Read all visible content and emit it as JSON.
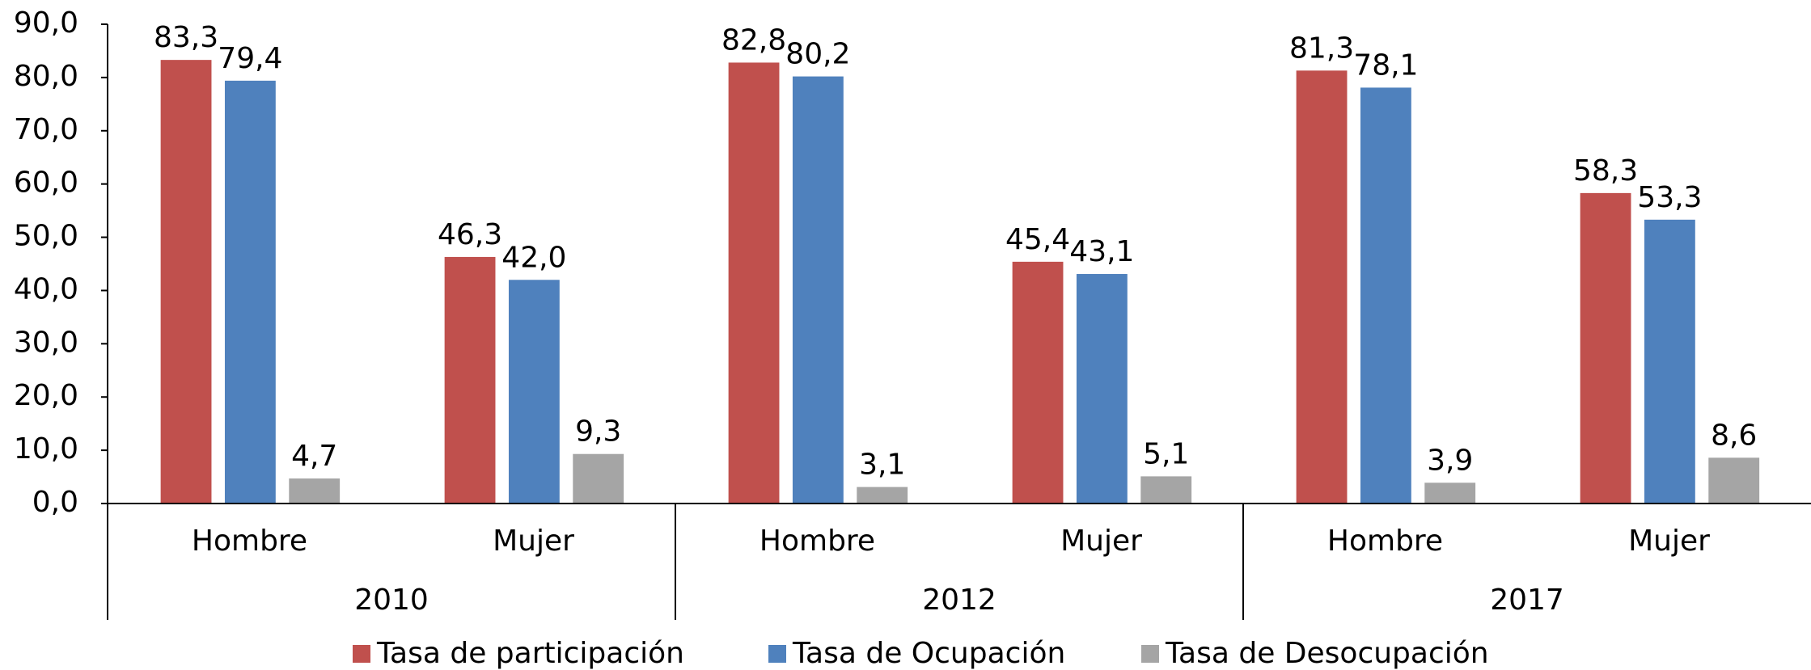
{
  "chart_data": {
    "type": "bar",
    "groups": [
      "2010",
      "2012",
      "2017"
    ],
    "categories": [
      "Hombre",
      "Mujer",
      "Hombre",
      "Mujer",
      "Hombre",
      "Mujer"
    ],
    "series": [
      {
        "name": "Tasa de participación",
        "color": "#c0504d",
        "values": [
          83.3,
          46.3,
          82.8,
          45.4,
          81.3,
          58.3
        ],
        "value_labels": [
          "83,3",
          "46,3",
          "82,8",
          "45,4",
          "81,3",
          "58,3"
        ]
      },
      {
        "name": "Tasa de Ocupación",
        "color": "#4f81bd",
        "values": [
          79.4,
          42.0,
          80.2,
          43.1,
          78.1,
          53.3
        ],
        "value_labels": [
          "79,4",
          "42,0",
          "80,2",
          "43,1",
          "78,1",
          "53,3"
        ]
      },
      {
        "name": "Tasa de Desocupación",
        "color": "#a5a5a5",
        "values": [
          4.7,
          9.3,
          3.1,
          5.1,
          3.9,
          8.6
        ],
        "value_labels": [
          "4,7",
          "9,3",
          "3,1",
          "5,1",
          "3,9",
          "8,6"
        ]
      }
    ],
    "ylim": [
      0,
      90
    ],
    "yticks": [
      {
        "value": 0,
        "label": "0,0"
      },
      {
        "value": 10,
        "label": "10,0"
      },
      {
        "value": 20,
        "label": "20,0"
      },
      {
        "value": 30,
        "label": "30,0"
      },
      {
        "value": 40,
        "label": "40,0"
      },
      {
        "value": 50,
        "label": "50,0"
      },
      {
        "value": 60,
        "label": "60,0"
      },
      {
        "value": 70,
        "label": "70,0"
      },
      {
        "value": 80,
        "label": "80,0"
      },
      {
        "value": 90,
        "label": "90,0"
      }
    ],
    "legend": "bottom"
  }
}
